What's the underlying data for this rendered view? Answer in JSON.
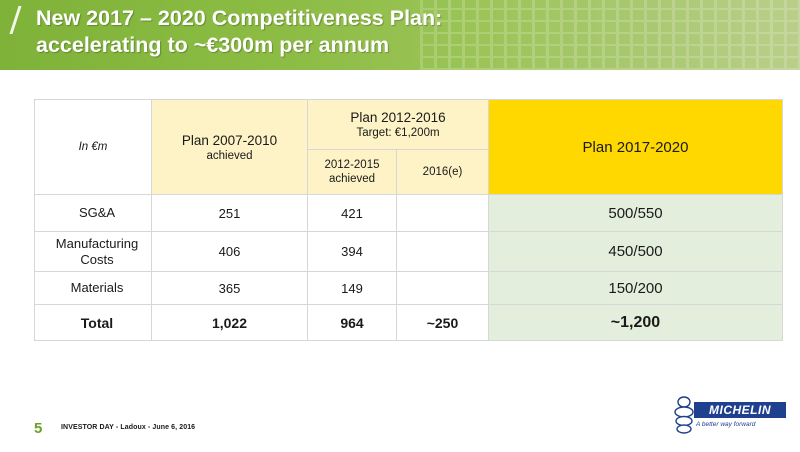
{
  "header": {
    "title_line1": "New 2017 – 2020 Competitiveness Plan:",
    "title_line2": "accelerating to ~€300m per annum"
  },
  "table": {
    "unit_label": "In €m",
    "plan1": {
      "title": "Plan 2007-2010",
      "subtitle": "achieved"
    },
    "plan2": {
      "title": "Plan 2012-2016",
      "target": "Target: €1,200m",
      "sub1_line1": "2012-2015",
      "sub1_line2": "achieved",
      "sub2": "2016(e)"
    },
    "plan3": {
      "title": "Plan 2017-2020"
    },
    "rows": [
      {
        "label": "SG&A",
        "label_line2": "",
        "p1": "251",
        "p2a": "421",
        "p2b": "",
        "p3": "500/550"
      },
      {
        "label": "Manufacturing",
        "label_line2": "Costs",
        "p1": "406",
        "p2a": "394",
        "p2b": "",
        "p3": "450/500"
      },
      {
        "label": "Materials",
        "label_line2": "",
        "p1": "365",
        "p2a": "149",
        "p2b": "",
        "p3": "150/200"
      },
      {
        "label": "Total",
        "label_line2": "",
        "p1": "1,022",
        "p2a": "964",
        "p2b": "~250",
        "p3": "~1,200"
      }
    ]
  },
  "footer": {
    "page_number": "5",
    "text": "INVESTOR DAY  -  Ladoux  -  June 6, 2016"
  },
  "logo": {
    "name": "MICHELIN",
    "tagline": "A better way forward"
  },
  "colors": {
    "header_green": "#7fb239",
    "plan_yellow": "#ffd800",
    "pale_yellow": "#fdf3c6",
    "pale_green": "#e3efdc",
    "footer_green": "#6aa324",
    "michelin_blue": "#1f3f8f"
  }
}
